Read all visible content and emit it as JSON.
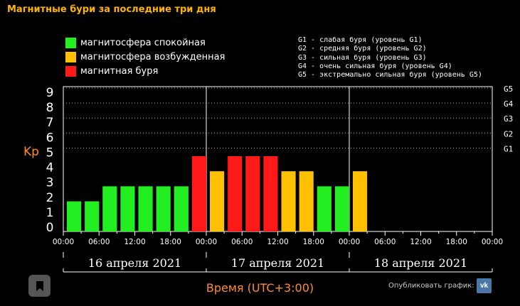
{
  "title": "Магнитные бури за последние три дня",
  "legend": [
    {
      "label": "магнитосфера спокойная",
      "color": "#22ee22"
    },
    {
      "label": "магнитосфера возбужденная",
      "color": "#ffc000"
    },
    {
      "label": "магнитная буря",
      "color": "#ff1a1a"
    }
  ],
  "g_legend": [
    "G1 - слабая буря (уровень G1)",
    "G2 - средняя буря (уровень G2)",
    "G3 - сильная буря (уровень G3)",
    "G4 - очень сильная буря (уровень G4)",
    "G5 - экстремально сильная буря (уровень G5)"
  ],
  "publish_label": "Опубликовать график:",
  "vk_icon": "vk-icon",
  "bookmark_icon": "bookmark-icon",
  "chart_data": {
    "type": "bar",
    "ylabel": "Kp",
    "xlabel": "Время (UTC+3:00)",
    "ylim": [
      0,
      9
    ],
    "y_ticks": [
      "0",
      "1",
      "2",
      "3",
      "4",
      "5",
      "6",
      "7",
      "8",
      "9"
    ],
    "g_levels": [
      {
        "label": "G1",
        "kp": 5
      },
      {
        "label": "G2",
        "kp": 6
      },
      {
        "label": "G3",
        "kp": 7
      },
      {
        "label": "G4",
        "kp": 8
      },
      {
        "label": "G5",
        "kp": 9
      }
    ],
    "days": [
      "16 апреля 2021",
      "17 апреля 2021",
      "18 апреля 2021"
    ],
    "x_ticks": [
      "00:00",
      "06:00",
      "12:00",
      "18:00",
      "00:00",
      "06:00",
      "12:00",
      "18:00",
      "00:00",
      "06:00",
      "12:00",
      "18:00",
      "00:00"
    ],
    "colors": {
      "quiet": "#22ee22",
      "active": "#ffc000",
      "storm": "#ff1a1a"
    },
    "values": [
      2,
      2,
      3,
      3,
      3,
      3,
      3,
      5,
      4,
      5,
      5,
      5,
      4,
      4,
      3,
      3,
      4
    ]
  }
}
